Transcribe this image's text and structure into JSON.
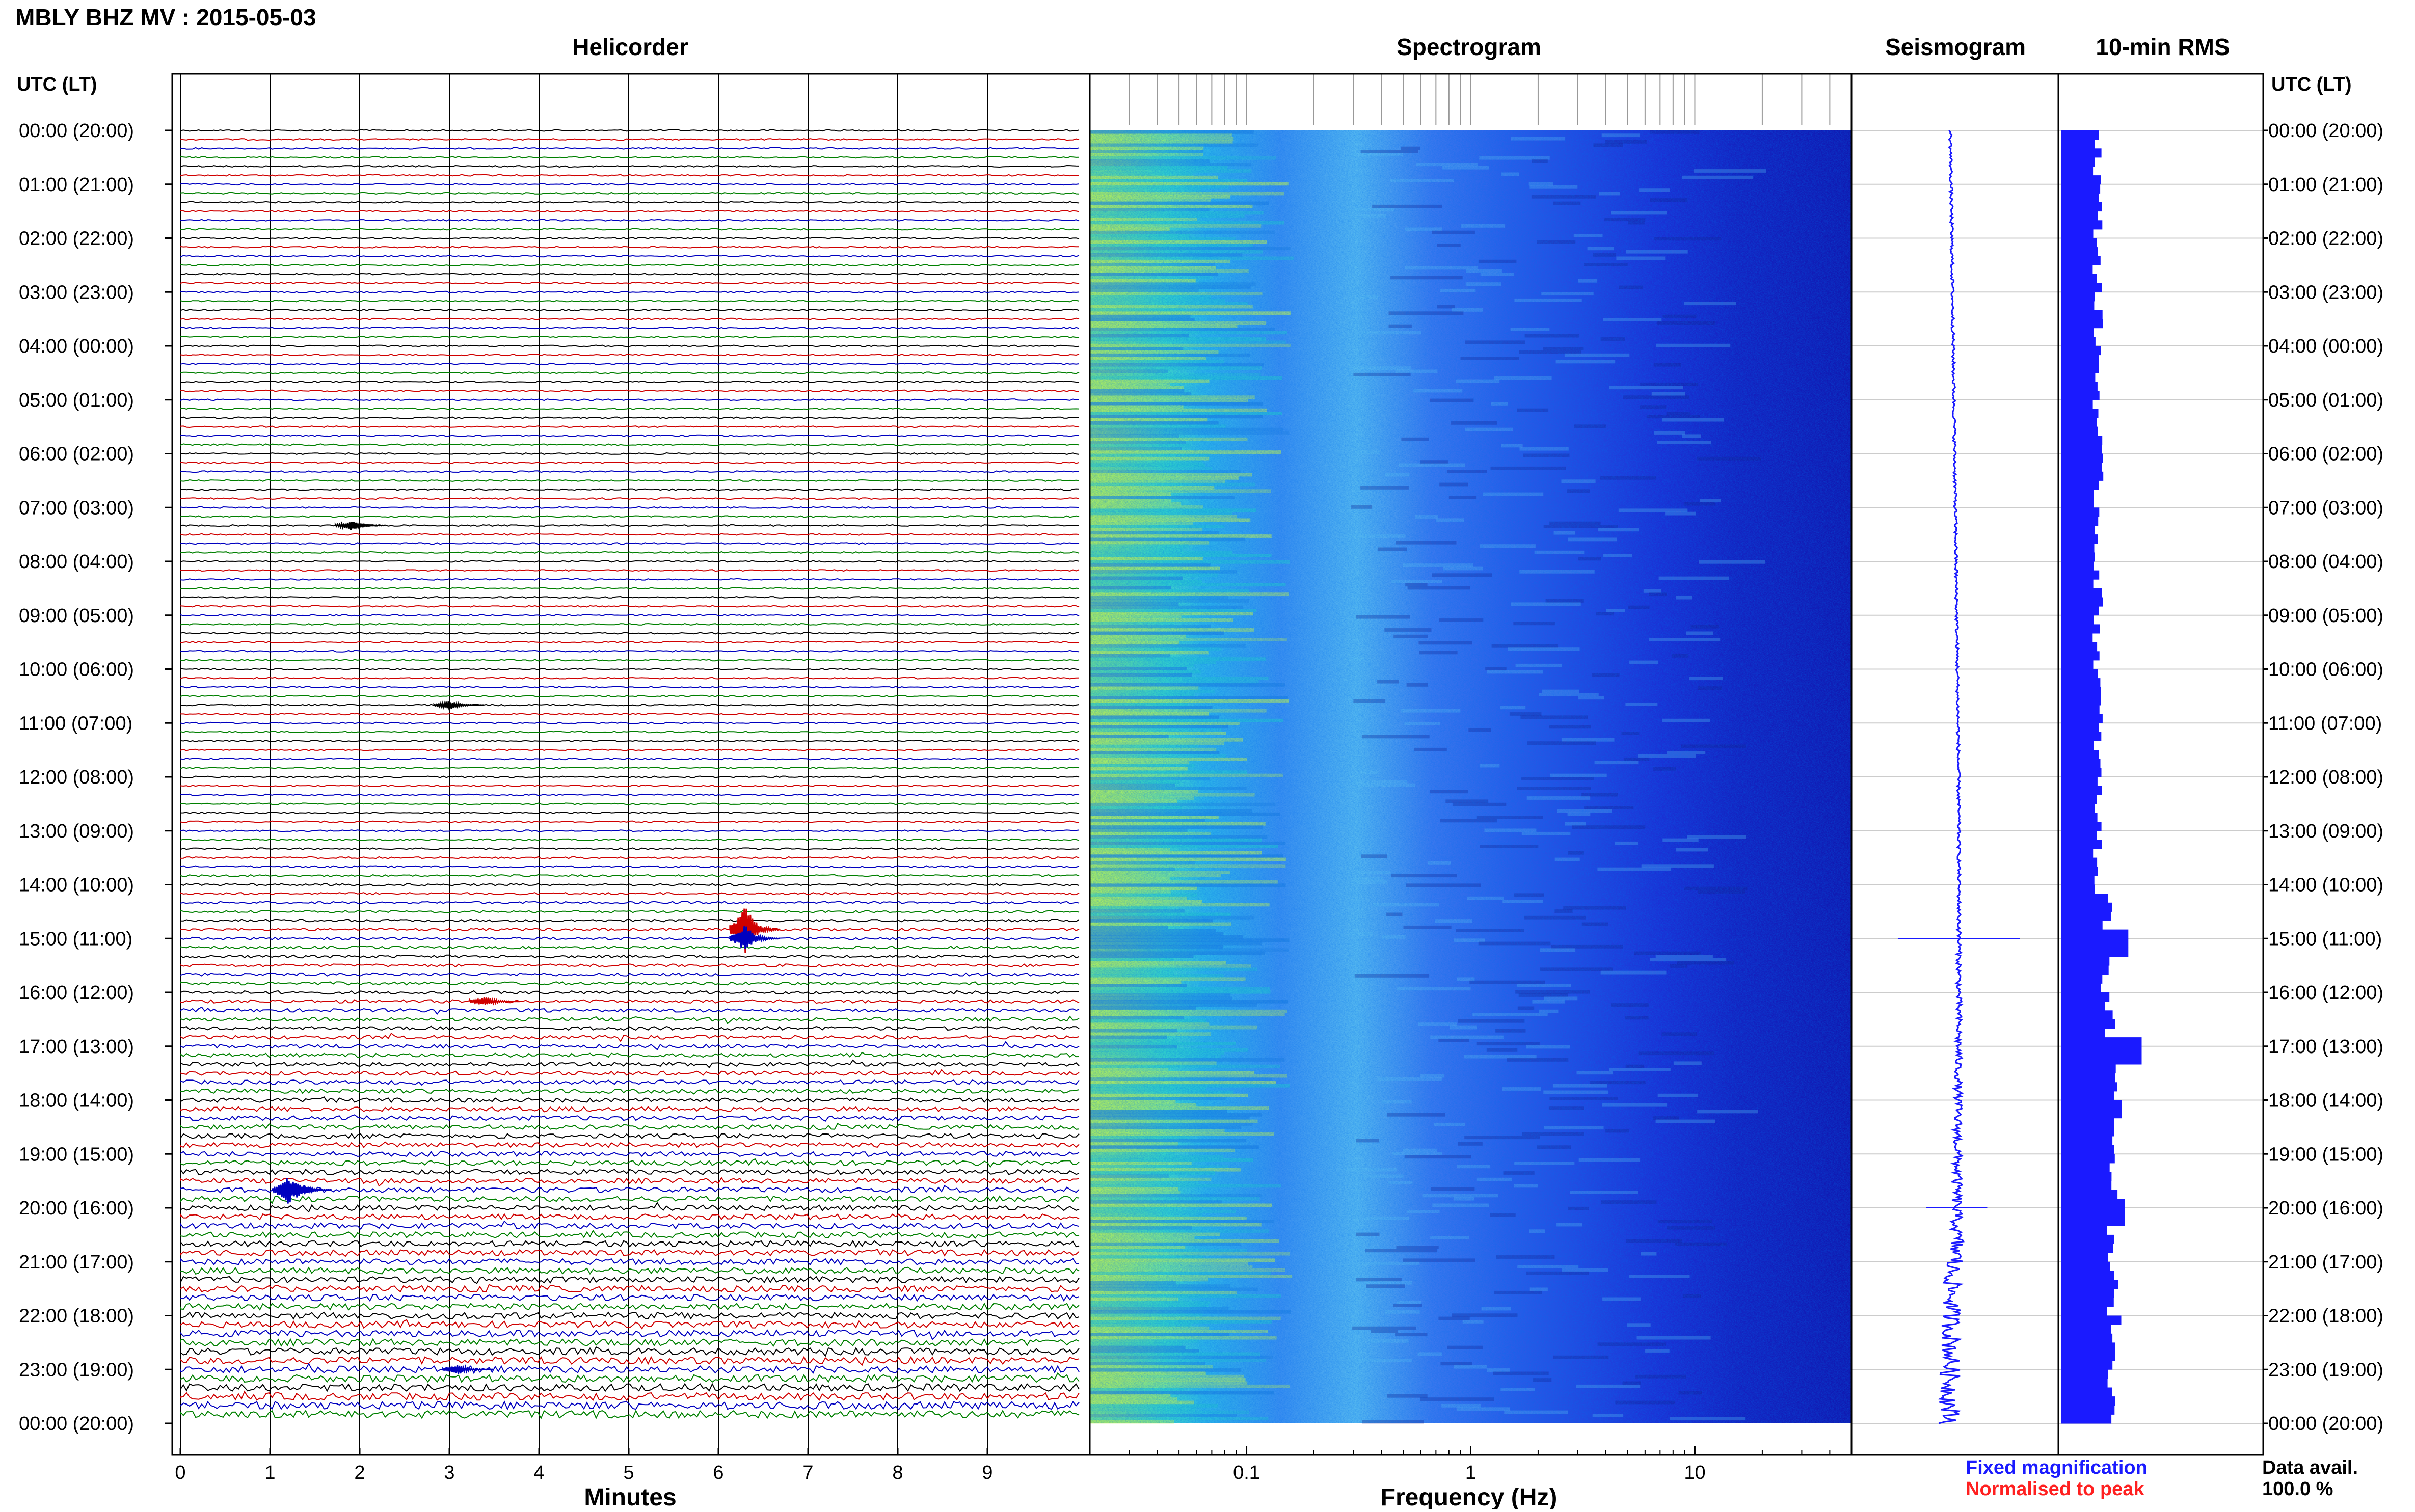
{
  "title": "MBLY BHZ MV : 2015-05-03",
  "headers": {
    "helicorder": "Helicorder",
    "spectrogram": "Spectrogram",
    "seismogram": "Seismogram",
    "rms": "10-min RMS",
    "utc_lt_left": "UTC (LT)",
    "utc_lt_right": "UTC (LT)"
  },
  "time_labels": [
    "00:00 (20:00)",
    "01:00 (21:00)",
    "02:00 (22:00)",
    "03:00 (23:00)",
    "04:00 (00:00)",
    "05:00 (01:00)",
    "06:00 (02:00)",
    "07:00 (03:00)",
    "08:00 (04:00)",
    "09:00 (05:00)",
    "10:00 (06:00)",
    "11:00 (07:00)",
    "12:00 (08:00)",
    "13:00 (09:00)",
    "14:00 (10:00)",
    "15:00 (11:00)",
    "16:00 (12:00)",
    "17:00 (13:00)",
    "18:00 (14:00)",
    "19:00 (15:00)",
    "20:00 (16:00)",
    "21:00 (17:00)",
    "22:00 (18:00)",
    "23:00 (19:00)",
    "00:00 (20:00)"
  ],
  "footer": {
    "xlabel_minutes": "Minutes",
    "xlabel_frequency": "Frequency (Hz)",
    "fixed_magnification": "Fixed magnification",
    "normalised_to_peak": "Normalised to peak",
    "data_avail_label": "Data avail.",
    "data_avail_value": "100.0 %"
  },
  "colors": {
    "trace_cycle": [
      "#000000",
      "#d00000",
      "#0000c0",
      "#008000"
    ],
    "fixed_magnification": "#1a1aff",
    "normalised_to_peak": "#ff2020",
    "seismogram": "#1a1aff",
    "rms": "#1a1aff",
    "spectrogram_low": "#2222dd",
    "spectrogram_high": "#e8f040"
  },
  "chart_data": [
    {
      "type": "line",
      "name": "helicorder",
      "xlabel": "Minutes",
      "x_ticks": [
        "0",
        "1",
        "2",
        "3",
        "4",
        "5",
        "6",
        "7",
        "8",
        "9"
      ],
      "xlim": [
        0,
        10
      ],
      "rows_per_hour": 6,
      "rows": 144,
      "events": [
        {
          "hour": 7.4,
          "minute": 1.9,
          "amplitude": 0.35
        },
        {
          "hour": 10.7,
          "minute": 3.0,
          "amplitude": 0.3
        },
        {
          "hour": 14.9,
          "minute": 6.3,
          "amplitude": 1.6
        },
        {
          "hour": 15.0,
          "minute": 6.3,
          "amplitude": 0.9
        },
        {
          "hour": 16.1,
          "minute": 3.4,
          "amplitude": 0.3
        },
        {
          "hour": 19.6,
          "minute": 1.2,
          "amplitude": 0.9
        },
        {
          "hour": 19.6,
          "minute": 1.3,
          "amplitude": 0.6
        },
        {
          "hour": 23.0,
          "minute": 3.1,
          "amplitude": 0.3
        }
      ]
    },
    {
      "type": "heatmap",
      "name": "spectrogram",
      "xlabel": "Frequency (Hz)",
      "x_scale": "log",
      "xlim": [
        0.02,
        50
      ],
      "x_ticks": [
        "0.1",
        "1",
        "10"
      ]
    },
    {
      "type": "line",
      "name": "seismogram",
      "xlabel": "",
      "spikes": [
        {
          "hour": 15.0,
          "amplitude": 1.0
        },
        {
          "hour": 20.0,
          "amplitude": 0.5
        }
      ]
    },
    {
      "type": "bar",
      "name": "10-min RMS",
      "xlabel": "",
      "bins_per_hour": 6,
      "peaks": [
        {
          "hour": 15.0,
          "value": 1.0
        },
        {
          "hour": 17.0,
          "value": 1.2
        },
        {
          "hour": 18.1,
          "value": 0.9
        },
        {
          "hour": 20.0,
          "value": 0.95
        }
      ]
    }
  ]
}
